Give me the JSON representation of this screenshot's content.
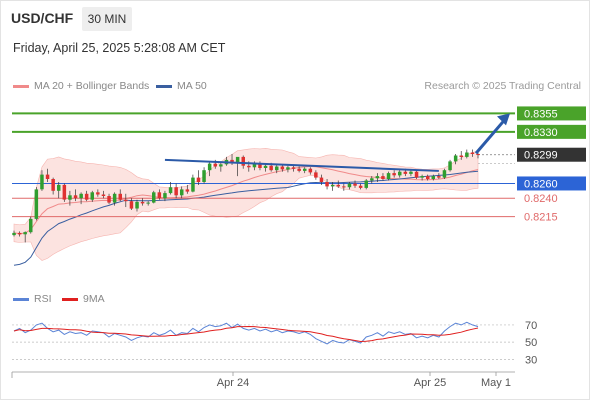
{
  "header": {
    "symbol": "USD/CHF",
    "timeframe": "30 MIN",
    "timestamp": "Friday, April 25, 2025 5:28:08 AM CET"
  },
  "legend": {
    "ma20_bb": {
      "label": "MA 20 + Bollinger Bands",
      "color": "#f08a8a"
    },
    "ma50": {
      "label": "MA 50",
      "color": "#3a5fa0"
    },
    "rsi": {
      "label": "RSI",
      "color": "#5b84d6"
    },
    "rsi_ma": {
      "label": "9MA",
      "color": "#e0201f"
    }
  },
  "credit": "Research © 2025 Trading Central",
  "colors": {
    "up": "#2f9e2f",
    "down": "#e03030",
    "resistance": "#4aa32a",
    "support": "#e06a6a",
    "pivot": "#2c64d6",
    "trend": "#2b5aa8"
  },
  "chart_data": {
    "type": "candlestick",
    "ylim": [
      0.8125,
      0.838
    ],
    "x_ticks": [
      "Apr 24",
      "Apr 25",
      "May 1"
    ],
    "levels": [
      {
        "label": "0.8355",
        "value": 0.8355,
        "kind": "resistance"
      },
      {
        "label": "0.8330",
        "value": 0.833,
        "kind": "resistance"
      },
      {
        "label": "0.8299",
        "value": 0.8299,
        "kind": "last"
      },
      {
        "label": "0.8260",
        "value": 0.826,
        "kind": "pivot"
      },
      {
        "label": "0.8240",
        "value": 0.824,
        "kind": "support"
      },
      {
        "label": "0.8215",
        "value": 0.8215,
        "kind": "support"
      }
    ],
    "candles": [
      [
        0.819,
        0.8196,
        0.8188,
        0.8193
      ],
      [
        0.8193,
        0.8195,
        0.8188,
        0.8191
      ],
      [
        0.8191,
        0.8195,
        0.818,
        0.8194
      ],
      [
        0.8194,
        0.8215,
        0.8192,
        0.8212
      ],
      [
        0.8212,
        0.8255,
        0.821,
        0.8252
      ],
      [
        0.8252,
        0.8278,
        0.825,
        0.8272
      ],
      [
        0.8272,
        0.828,
        0.8262,
        0.8266
      ],
      [
        0.8266,
        0.8268,
        0.8245,
        0.825
      ],
      [
        0.825,
        0.8262,
        0.824,
        0.8258
      ],
      [
        0.8258,
        0.826,
        0.8235,
        0.8238
      ],
      [
        0.8238,
        0.825,
        0.823,
        0.8244
      ],
      [
        0.8244,
        0.8252,
        0.8236,
        0.824
      ],
      [
        0.824,
        0.8248,
        0.8232,
        0.8246
      ],
      [
        0.8246,
        0.825,
        0.8236,
        0.8238
      ],
      [
        0.8238,
        0.825,
        0.8235,
        0.8248
      ],
      [
        0.8248,
        0.8252,
        0.8242,
        0.8245
      ],
      [
        0.8245,
        0.825,
        0.824,
        0.8243
      ],
      [
        0.8243,
        0.8246,
        0.8232,
        0.8234
      ],
      [
        0.8234,
        0.8248,
        0.823,
        0.8246
      ],
      [
        0.8246,
        0.8252,
        0.8236,
        0.8238
      ],
      [
        0.8238,
        0.8246,
        0.8228,
        0.8236
      ],
      [
        0.8236,
        0.824,
        0.8224,
        0.8226
      ],
      [
        0.8226,
        0.8238,
        0.8222,
        0.8235
      ],
      [
        0.8235,
        0.824,
        0.823,
        0.8233
      ],
      [
        0.8233,
        0.8236,
        0.823,
        0.8234
      ],
      [
        0.8234,
        0.825,
        0.8233,
        0.8248
      ],
      [
        0.8248,
        0.8252,
        0.8238,
        0.824
      ],
      [
        0.824,
        0.825,
        0.8236,
        0.8247
      ],
      [
        0.8247,
        0.8262,
        0.8245,
        0.8255
      ],
      [
        0.8255,
        0.826,
        0.824,
        0.8244
      ],
      [
        0.8244,
        0.8256,
        0.824,
        0.8252
      ],
      [
        0.8252,
        0.8258,
        0.8246,
        0.8249
      ],
      [
        0.8249,
        0.8272,
        0.8248,
        0.8268
      ],
      [
        0.8268,
        0.8278,
        0.8258,
        0.8262
      ],
      [
        0.8262,
        0.8282,
        0.826,
        0.8278
      ],
      [
        0.8278,
        0.829,
        0.827,
        0.8287
      ],
      [
        0.8287,
        0.8292,
        0.828,
        0.8283
      ],
      [
        0.8283,
        0.8288,
        0.8276,
        0.8286
      ],
      [
        0.8286,
        0.8296,
        0.8284,
        0.8292
      ],
      [
        0.8292,
        0.83,
        0.8285,
        0.8288
      ],
      [
        0.8288,
        0.8294,
        0.827,
        0.8296
      ],
      [
        0.8296,
        0.8298,
        0.828,
        0.8284
      ],
      [
        0.8284,
        0.829,
        0.8276,
        0.8282
      ],
      [
        0.8282,
        0.829,
        0.8278,
        0.8287
      ],
      [
        0.8287,
        0.829,
        0.8278,
        0.8281
      ],
      [
        0.8281,
        0.8286,
        0.8276,
        0.8284
      ],
      [
        0.8284,
        0.8288,
        0.8276,
        0.8278
      ],
      [
        0.8278,
        0.8286,
        0.8274,
        0.8283
      ],
      [
        0.8283,
        0.8286,
        0.8276,
        0.8279
      ],
      [
        0.8279,
        0.8284,
        0.8275,
        0.8282
      ],
      [
        0.8282,
        0.8284,
        0.8276,
        0.828
      ],
      [
        0.828,
        0.8283,
        0.8275,
        0.8277
      ],
      [
        0.8277,
        0.8282,
        0.8274,
        0.828
      ],
      [
        0.828,
        0.8282,
        0.8272,
        0.8275
      ],
      [
        0.8275,
        0.8278,
        0.8265,
        0.8268
      ],
      [
        0.8268,
        0.8272,
        0.8258,
        0.8262
      ],
      [
        0.8262,
        0.8266,
        0.8252,
        0.8256
      ],
      [
        0.8256,
        0.8262,
        0.825,
        0.8258
      ],
      [
        0.8258,
        0.8264,
        0.8254,
        0.8256
      ],
      [
        0.8256,
        0.826,
        0.825,
        0.8255
      ],
      [
        0.8255,
        0.8262,
        0.8252,
        0.826
      ],
      [
        0.826,
        0.8264,
        0.8254,
        0.8257
      ],
      [
        0.8257,
        0.826,
        0.8252,
        0.8254
      ],
      [
        0.8254,
        0.8266,
        0.8252,
        0.8264
      ],
      [
        0.8264,
        0.827,
        0.826,
        0.8267
      ],
      [
        0.8267,
        0.8274,
        0.8262,
        0.827
      ],
      [
        0.827,
        0.8274,
        0.8264,
        0.8266
      ],
      [
        0.8266,
        0.8276,
        0.8264,
        0.8274
      ],
      [
        0.8274,
        0.8278,
        0.8268,
        0.8271
      ],
      [
        0.8271,
        0.8278,
        0.8268,
        0.8276
      ],
      [
        0.8276,
        0.828,
        0.827,
        0.8273
      ],
      [
        0.8273,
        0.8278,
        0.827,
        0.8276
      ],
      [
        0.8276,
        0.8278,
        0.8266,
        0.8268
      ],
      [
        0.8268,
        0.8272,
        0.8264,
        0.827
      ],
      [
        0.827,
        0.8272,
        0.8264,
        0.8266
      ],
      [
        0.8266,
        0.8272,
        0.8264,
        0.827
      ],
      [
        0.827,
        0.8274,
        0.8266,
        0.8268
      ],
      [
        0.8268,
        0.828,
        0.8266,
        0.8278
      ],
      [
        0.8278,
        0.8292,
        0.8276,
        0.829
      ],
      [
        0.829,
        0.83,
        0.8286,
        0.8298
      ],
      [
        0.8298,
        0.8304,
        0.8292,
        0.8296
      ],
      [
        0.8296,
        0.8306,
        0.8294,
        0.8302
      ],
      [
        0.8302,
        0.8306,
        0.8296,
        0.83
      ],
      [
        0.83,
        0.8304,
        0.8294,
        0.8299
      ]
    ],
    "rsi": [
      63,
      66,
      61,
      64,
      70,
      72,
      66,
      62,
      64,
      59,
      62,
      60,
      61,
      58,
      63,
      62,
      61,
      56,
      60,
      58,
      56,
      52,
      55,
      57,
      56,
      61,
      58,
      60,
      64,
      58,
      61,
      60,
      66,
      62,
      67,
      70,
      68,
      69,
      72,
      67,
      71,
      66,
      64,
      66,
      63,
      65,
      62,
      64,
      61,
      63,
      62,
      60,
      62,
      59,
      54,
      51,
      48,
      52,
      50,
      49,
      53,
      51,
      49,
      56,
      58,
      61,
      57,
      62,
      60,
      62,
      59,
      60,
      55,
      57,
      55,
      58,
      56,
      63,
      68,
      72,
      70,
      73,
      70,
      68
    ],
    "rsi_ylim": [
      20,
      85
    ],
    "rsi_levels": [
      {
        "label": "70",
        "value": 70
      },
      {
        "label": "50",
        "value": 50
      },
      {
        "label": "30",
        "value": 30
      }
    ]
  }
}
